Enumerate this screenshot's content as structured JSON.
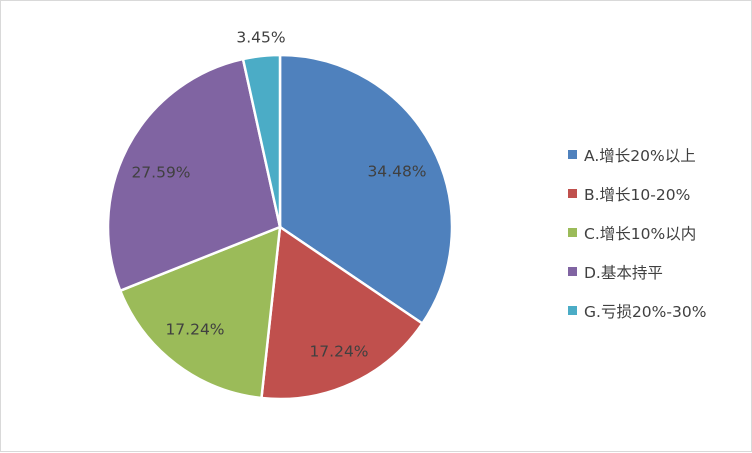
{
  "chart_data": {
    "type": "pie",
    "title": "",
    "categories": [
      "A.增长20%以上",
      "B.增长10-20%",
      "C.增长10%以内",
      "D.基本持平",
      "G.亏损20%-30%"
    ],
    "values": [
      34.48,
      17.24,
      17.24,
      27.59,
      3.45
    ],
    "data_labels": [
      "34.48%",
      "17.24%",
      "17.24%",
      "27.59%",
      "3.45%"
    ],
    "colors": [
      "#4F81BD",
      "#C0504D",
      "#9BBB59",
      "#8064A2",
      "#4BACC6"
    ],
    "legend_position": "right",
    "start_angle": "12 o'clock",
    "direction": "clockwise"
  }
}
